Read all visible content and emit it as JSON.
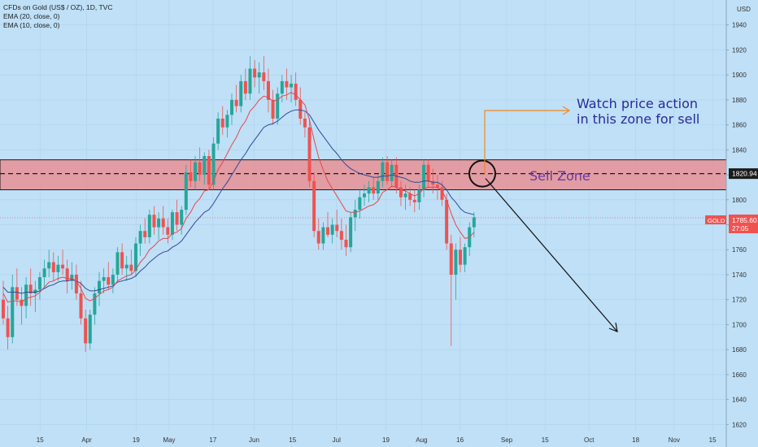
{
  "legend": {
    "title": "CFDs on Gold (US$ / OZ), 1D, TVC",
    "ema20": "EMA (20, close, 0)",
    "ema10": "EMA (10, close, 0)"
  },
  "price_axis": {
    "currency": "USD"
  },
  "price_tag": {
    "symbol": "GOLD",
    "value": "1785.60",
    "countdown": "27:05"
  },
  "zone_level_tag": "1820.94",
  "annotations": {
    "watch_line1": "Watch price action",
    "watch_line2": "in this zone for sell",
    "sell_zone": "Sell Zone"
  },
  "colors": {
    "background": "#bfe0f7",
    "up_candle": "#26a69a",
    "down_candle": "#ef5350",
    "ema20": "#2e4a9a",
    "ema10": "#e5484d",
    "zone_fill": "#e88f94",
    "zone_border": "#1b1b1b",
    "orange_arrow": "#f08a1c",
    "annotation_text": "#2a2a9a",
    "sell_zone_text": "#6a3aa0"
  },
  "chart_data": {
    "type": "candlestick",
    "title": "CFDs on Gold (US$ / OZ), 1D, TVC",
    "ylabel": "USD",
    "ylim": [
      1615,
      1960
    ],
    "y_ticks": [
      1620,
      1640,
      1660,
      1680,
      1700,
      1720,
      1740,
      1760,
      1780,
      1800,
      1820,
      1840,
      1860,
      1880,
      1900,
      1920,
      1940,
      1960
    ],
    "x_tick_labels": [
      "15",
      "Apr",
      "19",
      "May",
      "17",
      "Jun",
      "15",
      "Jul",
      "19",
      "Aug",
      "16",
      "Sep",
      "15",
      "Oct",
      "18",
      "Nov",
      "15"
    ],
    "x_tick_days": [
      14,
      31,
      49,
      61,
      77,
      92,
      106,
      122,
      140,
      153,
      167,
      184,
      198,
      214,
      231,
      245,
      259
    ],
    "zone": {
      "top": 1832,
      "bottom": 1808,
      "mid": 1820.94,
      "label": "Sell Zone"
    },
    "last_price": 1785.6,
    "candles": [
      [
        1720,
        1735,
        1700,
        1705
      ],
      [
        1705,
        1715,
        1680,
        1690
      ],
      [
        1690,
        1740,
        1685,
        1730
      ],
      [
        1730,
        1745,
        1715,
        1720
      ],
      [
        1720,
        1730,
        1700,
        1715
      ],
      [
        1715,
        1738,
        1705,
        1732
      ],
      [
        1732,
        1745,
        1715,
        1725
      ],
      [
        1725,
        1735,
        1710,
        1728
      ],
      [
        1728,
        1742,
        1720,
        1738
      ],
      [
        1738,
        1752,
        1730,
        1745
      ],
      [
        1745,
        1760,
        1738,
        1750
      ],
      [
        1750,
        1758,
        1735,
        1742
      ],
      [
        1742,
        1755,
        1735,
        1748
      ],
      [
        1748,
        1760,
        1740,
        1745
      ],
      [
        1745,
        1752,
        1725,
        1735
      ],
      [
        1735,
        1750,
        1728,
        1740
      ],
      [
        1740,
        1748,
        1720,
        1725
      ],
      [
        1725,
        1735,
        1700,
        1705
      ],
      [
        1705,
        1712,
        1678,
        1685
      ],
      [
        1685,
        1712,
        1680,
        1708
      ],
      [
        1708,
        1730,
        1700,
        1725
      ],
      [
        1725,
        1742,
        1715,
        1735
      ],
      [
        1735,
        1745,
        1725,
        1738
      ],
      [
        1738,
        1750,
        1728,
        1732
      ],
      [
        1732,
        1745,
        1725,
        1740
      ],
      [
        1740,
        1762,
        1735,
        1758
      ],
      [
        1758,
        1765,
        1740,
        1745
      ],
      [
        1745,
        1755,
        1735,
        1748
      ],
      [
        1748,
        1760,
        1740,
        1743
      ],
      [
        1743,
        1770,
        1738,
        1765
      ],
      [
        1765,
        1780,
        1755,
        1775
      ],
      [
        1775,
        1785,
        1765,
        1770
      ],
      [
        1770,
        1792,
        1765,
        1788
      ],
      [
        1788,
        1795,
        1772,
        1778
      ],
      [
        1778,
        1790,
        1768,
        1785
      ],
      [
        1785,
        1795,
        1772,
        1778
      ],
      [
        1778,
        1785,
        1765,
        1772
      ],
      [
        1772,
        1792,
        1768,
        1790
      ],
      [
        1790,
        1800,
        1775,
        1780
      ],
      [
        1780,
        1795,
        1772,
        1792
      ],
      [
        1792,
        1828,
        1788,
        1822
      ],
      [
        1822,
        1832,
        1810,
        1815
      ],
      [
        1815,
        1835,
        1808,
        1830
      ],
      [
        1830,
        1842,
        1815,
        1820
      ],
      [
        1820,
        1838,
        1812,
        1835
      ],
      [
        1835,
        1840,
        1808,
        1812
      ],
      [
        1812,
        1850,
        1808,
        1845
      ],
      [
        1845,
        1870,
        1840,
        1865
      ],
      [
        1865,
        1875,
        1852,
        1858
      ],
      [
        1858,
        1872,
        1850,
        1868
      ],
      [
        1868,
        1885,
        1860,
        1880
      ],
      [
        1880,
        1892,
        1870,
        1875
      ],
      [
        1875,
        1900,
        1870,
        1895
      ],
      [
        1895,
        1905,
        1880,
        1885
      ],
      [
        1885,
        1915,
        1880,
        1905
      ],
      [
        1905,
        1912,
        1890,
        1898
      ],
      [
        1898,
        1910,
        1885,
        1902
      ],
      [
        1902,
        1915,
        1888,
        1895
      ],
      [
        1895,
        1905,
        1870,
        1880
      ],
      [
        1880,
        1888,
        1860,
        1865
      ],
      [
        1865,
        1890,
        1860,
        1885
      ],
      [
        1885,
        1900,
        1878,
        1895
      ],
      [
        1895,
        1905,
        1880,
        1890
      ],
      [
        1890,
        1900,
        1878,
        1893
      ],
      [
        1893,
        1902,
        1875,
        1880
      ],
      [
        1880,
        1890,
        1860,
        1865
      ],
      [
        1865,
        1870,
        1850,
        1858
      ],
      [
        1858,
        1865,
        1810,
        1815
      ],
      [
        1815,
        1822,
        1770,
        1775
      ],
      [
        1775,
        1785,
        1760,
        1765
      ],
      [
        1765,
        1782,
        1760,
        1778
      ],
      [
        1778,
        1790,
        1770,
        1772
      ],
      [
        1772,
        1785,
        1765,
        1780
      ],
      [
        1780,
        1792,
        1770,
        1775
      ],
      [
        1775,
        1785,
        1760,
        1768
      ],
      [
        1768,
        1780,
        1755,
        1762
      ],
      [
        1762,
        1790,
        1758,
        1786
      ],
      [
        1786,
        1800,
        1775,
        1792
      ],
      [
        1792,
        1808,
        1785,
        1802
      ],
      [
        1802,
        1812,
        1795,
        1805
      ],
      [
        1805,
        1815,
        1798,
        1810
      ],
      [
        1810,
        1818,
        1800,
        1805
      ],
      [
        1805,
        1820,
        1800,
        1815
      ],
      [
        1815,
        1834,
        1810,
        1830
      ],
      [
        1830,
        1835,
        1812,
        1815
      ],
      [
        1815,
        1832,
        1810,
        1828
      ],
      [
        1828,
        1834,
        1805,
        1810
      ],
      [
        1810,
        1815,
        1795,
        1802
      ],
      [
        1802,
        1812,
        1792,
        1805
      ],
      [
        1805,
        1810,
        1795,
        1800
      ],
      [
        1800,
        1808,
        1790,
        1798
      ],
      [
        1798,
        1812,
        1792,
        1808
      ],
      [
        1808,
        1832,
        1802,
        1828
      ],
      [
        1828,
        1832,
        1810,
        1815
      ],
      [
        1815,
        1825,
        1805,
        1812
      ],
      [
        1812,
        1820,
        1800,
        1810
      ],
      [
        1810,
        1815,
        1795,
        1800
      ],
      [
        1800,
        1805,
        1760,
        1765
      ],
      [
        1765,
        1772,
        1683,
        1740
      ],
      [
        1740,
        1765,
        1720,
        1760
      ],
      [
        1760,
        1770,
        1742,
        1748
      ],
      [
        1748,
        1765,
        1742,
        1762
      ],
      [
        1762,
        1782,
        1755,
        1778
      ],
      [
        1778,
        1790,
        1770,
        1786
      ]
    ],
    "ema20": [
      1730,
      1726,
      1726,
      1726,
      1725,
      1726,
      1726,
      1726,
      1727,
      1729,
      1731,
      1732,
      1734,
      1735,
      1735,
      1736,
      1735,
      1733,
      1729,
      1727,
      1727,
      1728,
      1729,
      1730,
      1731,
      1734,
      1735,
      1736,
      1737,
      1739,
      1743,
      1746,
      1750,
      1753,
      1756,
      1758,
      1759,
      1762,
      1764,
      1767,
      1772,
      1777,
      1782,
      1786,
      1790,
      1792,
      1797,
      1803,
      1809,
      1814,
      1820,
      1826,
      1832,
      1837,
      1843,
      1848,
      1853,
      1858,
      1860,
      1861,
      1863,
      1866,
      1869,
      1871,
      1872,
      1872,
      1871,
      1868,
      1862,
      1856,
      1851,
      1846,
      1841,
      1837,
      1832,
      1828,
      1825,
      1823,
      1821,
      1820,
      1819,
      1818,
      1818,
      1819,
      1819,
      1820,
      1819,
      1818,
      1817,
      1815,
      1814,
      1814,
      1815,
      1815,
      1814,
      1814,
      1812,
      1808,
      1802,
      1798,
      1793,
      1790,
      1789,
      1788
    ],
    "ema10": [
      1725,
      1718,
      1719,
      1719,
      1718,
      1721,
      1722,
      1723,
      1726,
      1730,
      1734,
      1735,
      1737,
      1738,
      1737,
      1737,
      1735,
      1729,
      1721,
      1719,
      1721,
      1724,
      1727,
      1728,
      1730,
      1735,
      1737,
      1739,
      1740,
      1744,
      1750,
      1754,
      1760,
      1763,
      1767,
      1769,
      1769,
      1773,
      1774,
      1777,
      1785,
      1790,
      1797,
      1801,
      1807,
      1808,
      1815,
      1824,
      1830,
      1837,
      1844,
      1850,
      1858,
      1863,
      1871,
      1875,
      1880,
      1883,
      1882,
      1879,
      1880,
      1883,
      1884,
      1886,
      1884,
      1880,
      1876,
      1864,
      1848,
      1834,
      1824,
      1815,
      1809,
      1803,
      1797,
      1791,
      1790,
      1790,
      1791,
      1793,
      1795,
      1796,
      1799,
      1806,
      1808,
      1811,
      1810,
      1808,
      1807,
      1805,
      1803,
      1805,
      1809,
      1810,
      1810,
      1810,
      1807,
      1800,
      1789,
      1780,
      1774,
      1769,
      1770,
      1774
    ]
  }
}
